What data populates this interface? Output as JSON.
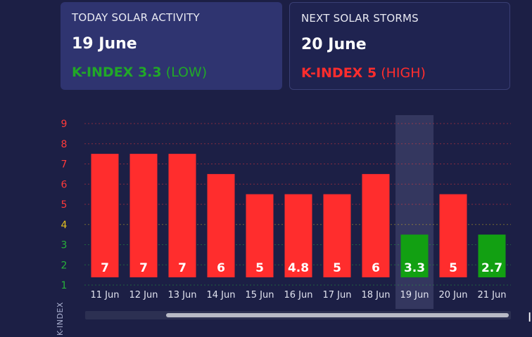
{
  "today": {
    "title": "TODAY SOLAR ACTIVITY",
    "date": "19 June",
    "k_label": "K-INDEX 3.3",
    "k_level": "(LOW)",
    "color": "#21a828"
  },
  "next": {
    "title": "NEXT SOLAR STORMS",
    "date": "20 June",
    "k_label": "K-INDEX 5",
    "k_level": "(HIGH)",
    "color": "#ff2d2d"
  },
  "chart_data": {
    "type": "bar",
    "ylabel": "K-INDEX",
    "ylim": [
      0.5,
      9.5
    ],
    "yticks": [
      {
        "value": 9,
        "label": "9",
        "color": "#ff3a3a"
      },
      {
        "value": 8,
        "label": "8",
        "color": "#ff3a3a"
      },
      {
        "value": 7,
        "label": "7",
        "color": "#ff3a3a"
      },
      {
        "value": 6,
        "label": "6",
        "color": "#ff3a3a"
      },
      {
        "value": 5,
        "label": "5",
        "color": "#ff3a3a"
      },
      {
        "value": 4,
        "label": "4",
        "color": "#e6c21f"
      },
      {
        "value": 3,
        "label": "3",
        "color": "#27b23a"
      },
      {
        "value": 2,
        "label": "2",
        "color": "#27b23a"
      },
      {
        "value": 1,
        "label": "1",
        "color": "#27b23a"
      }
    ],
    "categories": [
      "11 Jun",
      "12 Jun",
      "13 Jun",
      "14 Jun",
      "15 Jun",
      "16 Jun",
      "17 Jun",
      "18 Jun",
      "19 Jun",
      "20 Jun",
      "21 Jun"
    ],
    "values": [
      7,
      7,
      7,
      6,
      5,
      4.8,
      5,
      6,
      3.3,
      5,
      2.7
    ],
    "value_labels": [
      "7",
      "7",
      "7",
      "6",
      "5",
      "4.8",
      "5",
      "6",
      "3.3",
      "5",
      "2.7"
    ],
    "bar_heights": [
      7.5,
      7.5,
      7.5,
      6.5,
      5.5,
      5.5,
      5.5,
      6.5,
      3.5,
      5.5,
      3.5
    ],
    "bar_colors": [
      "#ff2d2d",
      "#ff2d2d",
      "#ff2d2d",
      "#ff2d2d",
      "#ff2d2d",
      "#ff2d2d",
      "#ff2d2d",
      "#ff2d2d",
      "#12a012",
      "#ff2d2d",
      "#12a012"
    ],
    "highlighted_category": "19 Jun",
    "grid": true
  },
  "colors": {
    "background": "#1c1f45",
    "high": "#ff2d2d",
    "low": "#12a012",
    "highlight_band": "#34375f"
  }
}
